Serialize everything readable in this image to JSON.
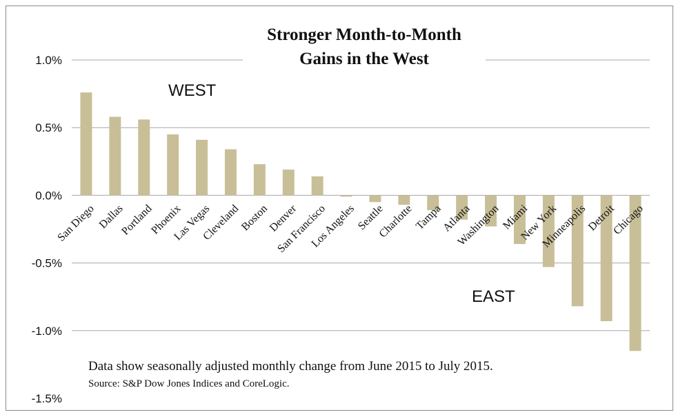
{
  "chart_data": {
    "type": "bar",
    "title_lines": [
      "Stronger Month-to-Month",
      "Gains in the West"
    ],
    "categories": [
      "San Diego",
      "Dallas",
      "Portland",
      "Phoenix",
      "Las Vegas",
      "Cleveland",
      "Boston",
      "Denver",
      "San Francisco",
      "Los Angeles",
      "Seattle",
      "Charlotte",
      "Tampa",
      "Atlanta",
      "Washington",
      "Miami",
      "New York",
      "Minneapolis",
      "Detroit",
      "Chicago"
    ],
    "values": [
      0.76,
      0.58,
      0.56,
      0.45,
      0.41,
      0.34,
      0.23,
      0.19,
      0.14,
      -0.01,
      -0.05,
      -0.07,
      -0.11,
      -0.18,
      -0.23,
      -0.36,
      -0.53,
      -0.82,
      -0.93,
      -1.15
    ],
    "ylim": [
      -1.5,
      1.0
    ],
    "yticks": [
      1.0,
      0.5,
      0.0,
      -0.5,
      -1.0,
      -1.5
    ],
    "ytick_labels": [
      "1.0%",
      "0.5%",
      "0.0%",
      "-0.5%",
      "-1.0%",
      "-1.5%"
    ],
    "grid": true,
    "bar_color": "#c8bf98",
    "grid_color": "#a6a6a6",
    "annotations": {
      "west": "WEST",
      "east": "EAST",
      "note": "Data show seasonally adjusted monthly change from June 2015 to July 2015.",
      "source": "Source: S&P Dow Jones Indices and CoreLogic."
    }
  }
}
